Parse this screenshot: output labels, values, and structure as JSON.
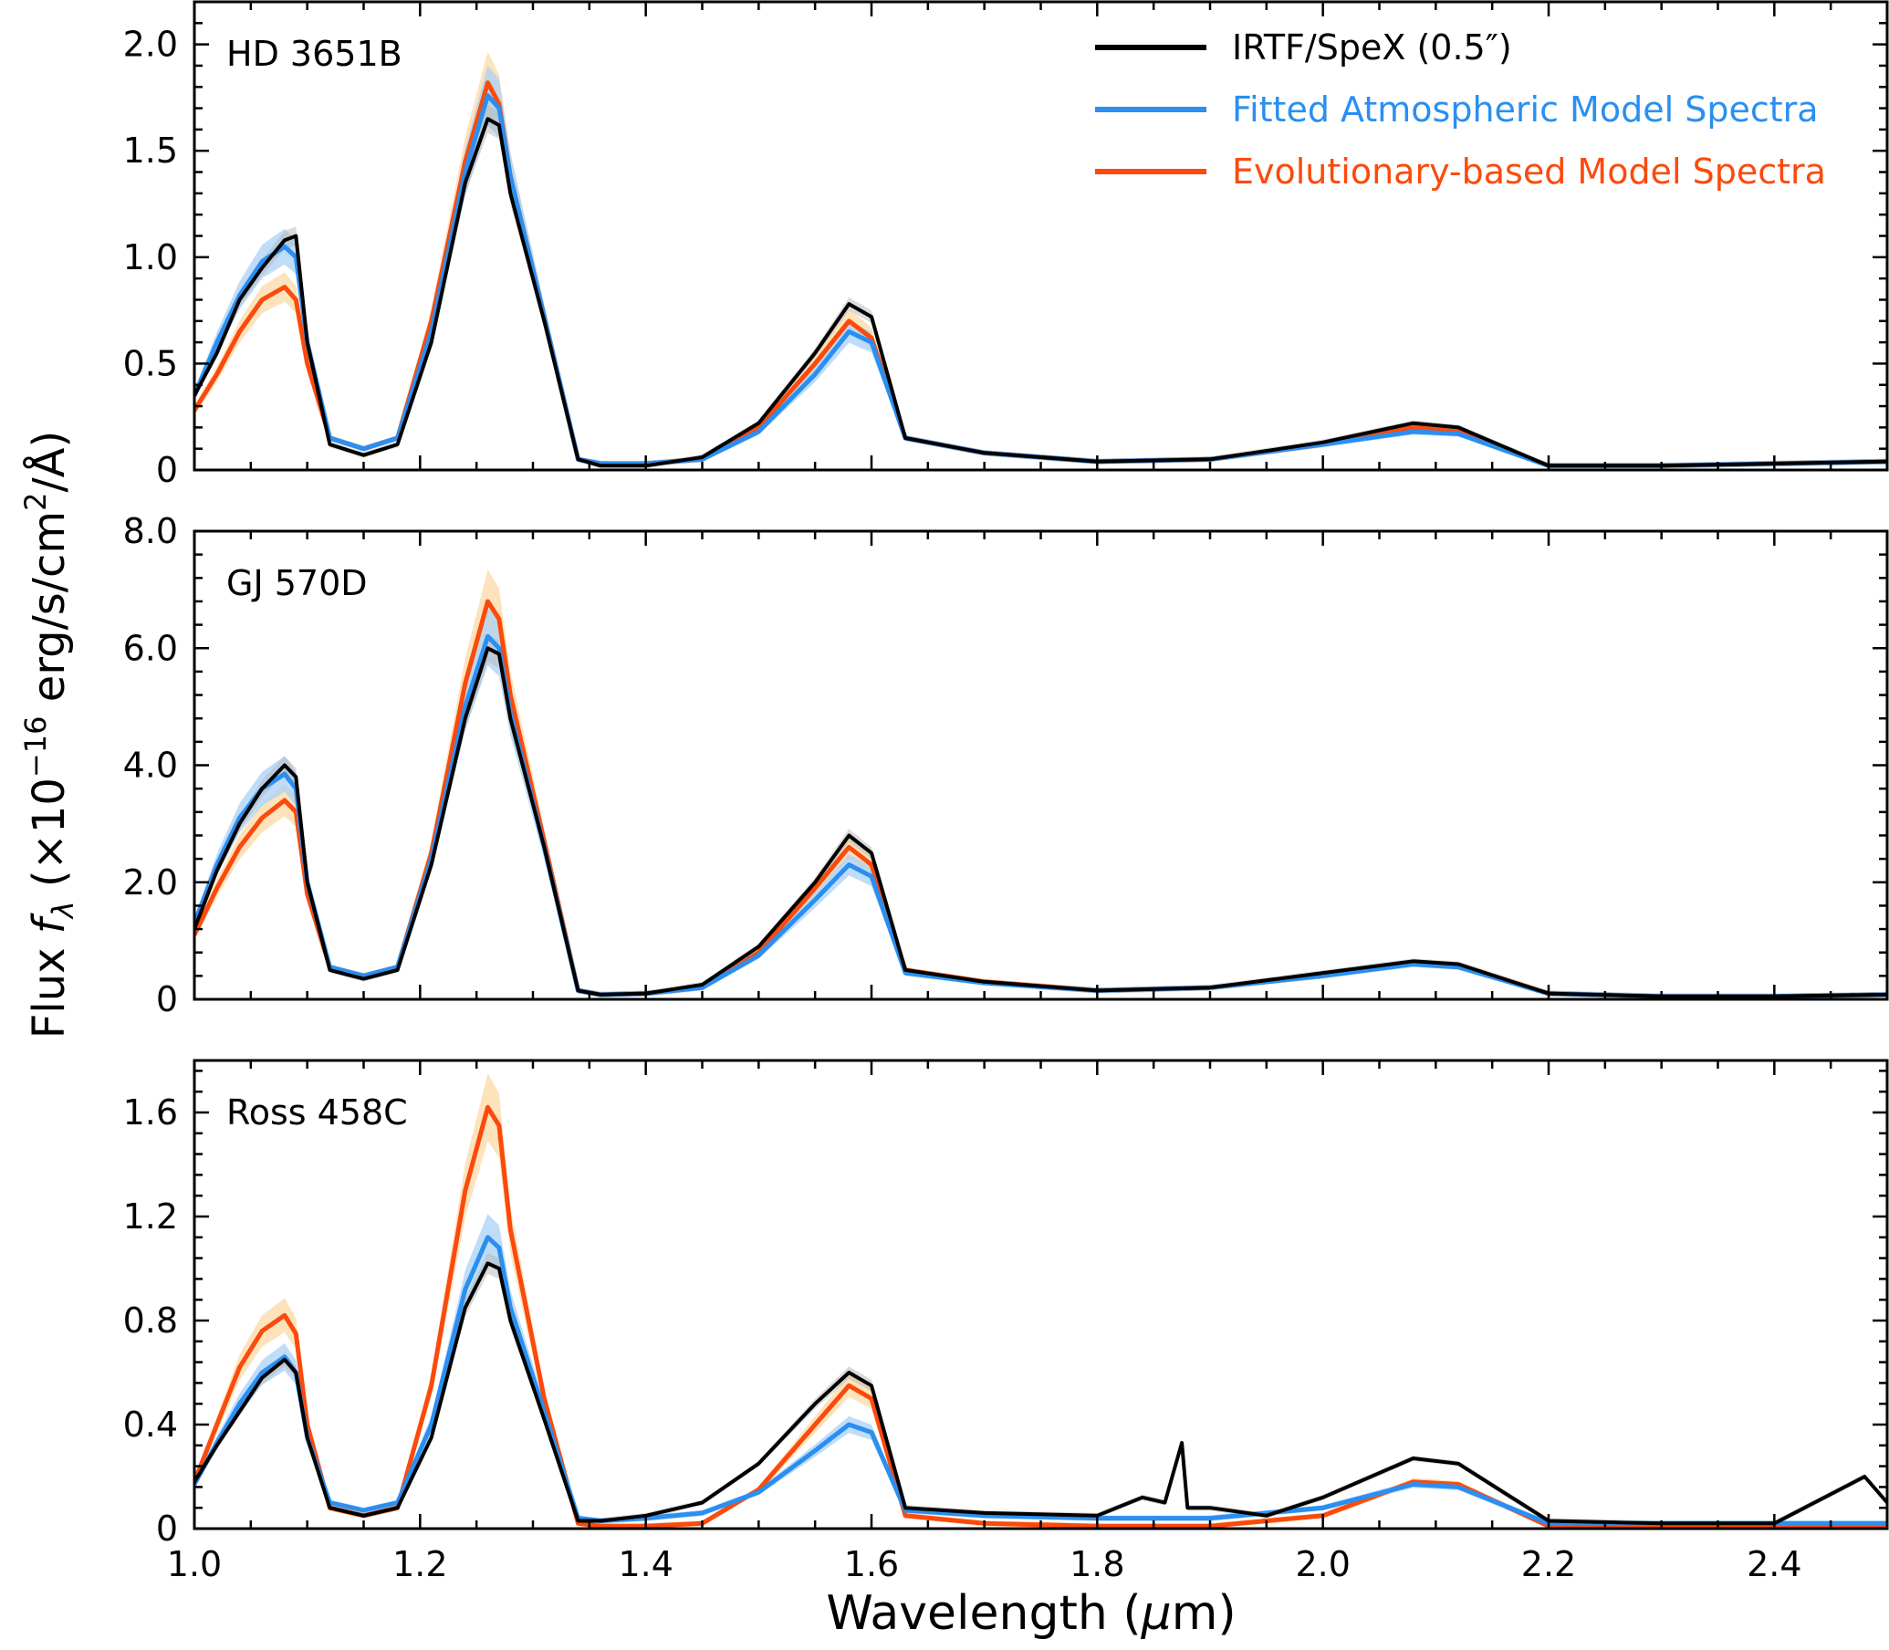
{
  "figure": {
    "ylabel_main": "Flux ",
    "ylabel_italic": "f",
    "ylabel_sub": "λ",
    "ylabel_rest": " (×10",
    "ylabel_sup": "−16",
    "ylabel_end": " erg/s/cm",
    "ylabel_sup2": "2",
    "ylabel_tail": "/Å)",
    "xlabel_pre": "Wavelength (",
    "xlabel_mu": "μ",
    "xlabel_post": "m)"
  },
  "legend": {
    "items": [
      {
        "label": "IRTF/SpeX (0.5″)",
        "color": "#000000"
      },
      {
        "label": "Fitted Atmospheric Model Spectra",
        "color": "#2a8ff0"
      },
      {
        "label": "Evolutionary-based Model Spectra",
        "color": "#fb4a0c"
      }
    ]
  },
  "colors": {
    "observed": "#000000",
    "observed_band": "#b8b8b8",
    "atmospheric": "#2a8ff0",
    "atmospheric_band": "#a9d2f6",
    "evolutionary": "#fb4a0c",
    "evolutionary_band": "#fcd9a6"
  },
  "chart_data": [
    {
      "type": "line",
      "title": "HD 3651B",
      "xlim": [
        1.0,
        2.5
      ],
      "ylim": [
        0,
        2.2
      ],
      "xticks": [
        "1.0",
        "1.2",
        "1.4",
        "1.6",
        "1.8",
        "2.0",
        "2.2",
        "2.4"
      ],
      "yticks": [
        {
          "v": 0,
          "label": "0"
        },
        {
          "v": 0.5,
          "label": "0.5"
        },
        {
          "v": 1.0,
          "label": "1.0"
        },
        {
          "v": 1.5,
          "label": "1.5"
        },
        {
          "v": 2.0,
          "label": "2.0"
        }
      ],
      "series": [
        {
          "name": "IRTF/SpeX (0.5″)",
          "key": "observed",
          "x": [
            1.0,
            1.02,
            1.04,
            1.06,
            1.08,
            1.09,
            1.1,
            1.12,
            1.15,
            1.18,
            1.21,
            1.24,
            1.26,
            1.27,
            1.28,
            1.31,
            1.34,
            1.36,
            1.4,
            1.45,
            1.5,
            1.55,
            1.58,
            1.6,
            1.63,
            1.7,
            1.8,
            1.9,
            2.0,
            2.08,
            2.12,
            2.2,
            2.3,
            2.4,
            2.5
          ],
          "y": [
            0.35,
            0.55,
            0.8,
            0.95,
            1.08,
            1.1,
            0.6,
            0.12,
            0.07,
            0.12,
            0.6,
            1.35,
            1.65,
            1.62,
            1.3,
            0.7,
            0.05,
            0.02,
            0.02,
            0.06,
            0.22,
            0.55,
            0.78,
            0.72,
            0.15,
            0.08,
            0.04,
            0.05,
            0.13,
            0.22,
            0.2,
            0.02,
            0.02,
            0.03,
            0.04
          ]
        },
        {
          "name": "Fitted Atmospheric Model Spectra",
          "key": "atmospheric",
          "x": [
            1.0,
            1.02,
            1.04,
            1.06,
            1.08,
            1.09,
            1.1,
            1.12,
            1.15,
            1.18,
            1.21,
            1.24,
            1.26,
            1.27,
            1.28,
            1.31,
            1.34,
            1.36,
            1.4,
            1.45,
            1.5,
            1.55,
            1.58,
            1.6,
            1.63,
            1.7,
            1.8,
            1.9,
            2.0,
            2.08,
            2.12,
            2.2,
            2.3,
            2.4,
            2.5
          ],
          "y": [
            0.35,
            0.6,
            0.82,
            0.98,
            1.05,
            1.0,
            0.6,
            0.15,
            0.1,
            0.15,
            0.65,
            1.4,
            1.76,
            1.7,
            1.38,
            0.72,
            0.05,
            0.03,
            0.03,
            0.05,
            0.18,
            0.45,
            0.65,
            0.6,
            0.15,
            0.08,
            0.04,
            0.05,
            0.12,
            0.18,
            0.17,
            0.02,
            0.02,
            0.03,
            0.04
          ]
        },
        {
          "name": "Evolutionary-based Model Spectra",
          "key": "evolutionary",
          "x": [
            1.0,
            1.02,
            1.04,
            1.06,
            1.08,
            1.09,
            1.1,
            1.12,
            1.15,
            1.18,
            1.21,
            1.24,
            1.26,
            1.27,
            1.28,
            1.31,
            1.34,
            1.36,
            1.4,
            1.45,
            1.5,
            1.55,
            1.58,
            1.6,
            1.63,
            1.7,
            1.8,
            1.9,
            2.0,
            2.08,
            2.12,
            2.2,
            2.3,
            2.4,
            2.5
          ],
          "y": [
            0.28,
            0.45,
            0.65,
            0.8,
            0.86,
            0.8,
            0.5,
            0.15,
            0.1,
            0.15,
            0.7,
            1.45,
            1.82,
            1.72,
            1.38,
            0.72,
            0.05,
            0.03,
            0.03,
            0.05,
            0.2,
            0.5,
            0.7,
            0.62,
            0.15,
            0.08,
            0.04,
            0.05,
            0.12,
            0.2,
            0.18,
            0.02,
            0.02,
            0.03,
            0.04
          ]
        }
      ]
    },
    {
      "type": "line",
      "title": "GJ 570D",
      "xlim": [
        1.0,
        2.5
      ],
      "ylim": [
        0,
        8.0
      ],
      "xticks": [
        "1.0",
        "1.2",
        "1.4",
        "1.6",
        "1.8",
        "2.0",
        "2.2",
        "2.4"
      ],
      "yticks": [
        {
          "v": 0,
          "label": "0"
        },
        {
          "v": 2,
          "label": "2.0"
        },
        {
          "v": 4,
          "label": "4.0"
        },
        {
          "v": 6,
          "label": "6.0"
        },
        {
          "v": 8,
          "label": "8.0"
        }
      ],
      "series": [
        {
          "name": "IRTF/SpeX (0.5″)",
          "key": "observed",
          "x": [
            1.0,
            1.02,
            1.04,
            1.06,
            1.08,
            1.09,
            1.1,
            1.12,
            1.15,
            1.18,
            1.21,
            1.24,
            1.26,
            1.27,
            1.28,
            1.31,
            1.34,
            1.36,
            1.4,
            1.45,
            1.5,
            1.55,
            1.58,
            1.6,
            1.63,
            1.7,
            1.8,
            1.9,
            2.0,
            2.08,
            2.12,
            2.2,
            2.3,
            2.4,
            2.5
          ],
          "y": [
            1.2,
            2.2,
            3.0,
            3.6,
            4.0,
            3.8,
            2.0,
            0.5,
            0.35,
            0.5,
            2.3,
            4.8,
            6.0,
            5.9,
            4.8,
            2.6,
            0.15,
            0.08,
            0.1,
            0.25,
            0.9,
            2.0,
            2.8,
            2.5,
            0.5,
            0.3,
            0.15,
            0.2,
            0.45,
            0.65,
            0.6,
            0.1,
            0.05,
            0.05,
            0.08
          ]
        },
        {
          "name": "Fitted Atmospheric Model Spectra",
          "key": "atmospheric",
          "x": [
            1.0,
            1.02,
            1.04,
            1.06,
            1.08,
            1.09,
            1.1,
            1.12,
            1.15,
            1.18,
            1.21,
            1.24,
            1.26,
            1.27,
            1.28,
            1.31,
            1.34,
            1.36,
            1.4,
            1.45,
            1.5,
            1.55,
            1.58,
            1.6,
            1.63,
            1.7,
            1.8,
            1.9,
            2.0,
            2.08,
            2.12,
            2.2,
            2.3,
            2.4,
            2.5
          ],
          "y": [
            1.3,
            2.3,
            3.1,
            3.6,
            3.85,
            3.6,
            2.0,
            0.55,
            0.4,
            0.55,
            2.4,
            5.0,
            6.2,
            6.0,
            4.9,
            2.6,
            0.15,
            0.08,
            0.1,
            0.2,
            0.75,
            1.7,
            2.3,
            2.1,
            0.45,
            0.28,
            0.15,
            0.2,
            0.4,
            0.6,
            0.55,
            0.1,
            0.05,
            0.05,
            0.08
          ]
        },
        {
          "name": "Evolutionary-based Model Spectra",
          "key": "evolutionary",
          "x": [
            1.0,
            1.02,
            1.04,
            1.06,
            1.08,
            1.09,
            1.1,
            1.12,
            1.15,
            1.18,
            1.21,
            1.24,
            1.26,
            1.27,
            1.28,
            1.31,
            1.34,
            1.36,
            1.4,
            1.45,
            1.5,
            1.55,
            1.58,
            1.6,
            1.63,
            1.7,
            1.8,
            1.9,
            2.0,
            2.08,
            2.12,
            2.2,
            2.3,
            2.4,
            2.5
          ],
          "y": [
            1.1,
            1.9,
            2.6,
            3.1,
            3.4,
            3.2,
            1.8,
            0.55,
            0.4,
            0.55,
            2.5,
            5.4,
            6.8,
            6.5,
            5.2,
            2.7,
            0.15,
            0.08,
            0.1,
            0.2,
            0.8,
            1.9,
            2.6,
            2.3,
            0.5,
            0.3,
            0.15,
            0.2,
            0.4,
            0.62,
            0.58,
            0.1,
            0.05,
            0.05,
            0.08
          ]
        }
      ]
    },
    {
      "type": "line",
      "title": "Ross 458C",
      "xlim": [
        1.0,
        2.5
      ],
      "ylim": [
        0,
        1.8
      ],
      "xticks": [
        "1.0",
        "1.2",
        "1.4",
        "1.6",
        "1.8",
        "2.0",
        "2.2",
        "2.4"
      ],
      "yticks": [
        {
          "v": 0,
          "label": "0"
        },
        {
          "v": 0.4,
          "label": "0.4"
        },
        {
          "v": 0.8,
          "label": "0.8"
        },
        {
          "v": 1.2,
          "label": "1.2"
        },
        {
          "v": 1.6,
          "label": "1.6"
        }
      ],
      "series": [
        {
          "name": "IRTF/SpeX (0.5″)",
          "key": "observed",
          "x": [
            1.0,
            1.02,
            1.04,
            1.06,
            1.08,
            1.09,
            1.1,
            1.12,
            1.15,
            1.18,
            1.21,
            1.24,
            1.26,
            1.27,
            1.28,
            1.31,
            1.34,
            1.36,
            1.4,
            1.45,
            1.5,
            1.55,
            1.58,
            1.6,
            1.63,
            1.7,
            1.8,
            1.84,
            1.86,
            1.875,
            1.88,
            1.9,
            1.95,
            2.0,
            2.08,
            2.12,
            2.2,
            2.3,
            2.4,
            2.48,
            2.5
          ],
          "y": [
            0.18,
            0.32,
            0.45,
            0.58,
            0.65,
            0.6,
            0.35,
            0.08,
            0.05,
            0.08,
            0.35,
            0.85,
            1.02,
            1.0,
            0.8,
            0.42,
            0.03,
            0.03,
            0.05,
            0.1,
            0.25,
            0.48,
            0.6,
            0.55,
            0.08,
            0.06,
            0.05,
            0.12,
            0.1,
            0.33,
            0.08,
            0.08,
            0.05,
            0.12,
            0.27,
            0.25,
            0.03,
            0.02,
            0.02,
            0.2,
            0.1
          ]
        },
        {
          "name": "Fitted Atmospheric Model Spectra",
          "key": "atmospheric",
          "x": [
            1.0,
            1.02,
            1.04,
            1.06,
            1.08,
            1.09,
            1.1,
            1.12,
            1.15,
            1.18,
            1.21,
            1.24,
            1.26,
            1.27,
            1.28,
            1.31,
            1.34,
            1.36,
            1.4,
            1.45,
            1.5,
            1.55,
            1.58,
            1.6,
            1.63,
            1.7,
            1.8,
            1.9,
            2.0,
            2.08,
            2.12,
            2.2,
            2.3,
            2.4,
            2.5
          ],
          "y": [
            0.17,
            0.33,
            0.48,
            0.6,
            0.66,
            0.6,
            0.35,
            0.1,
            0.07,
            0.1,
            0.4,
            0.92,
            1.12,
            1.08,
            0.85,
            0.45,
            0.04,
            0.03,
            0.04,
            0.06,
            0.14,
            0.3,
            0.4,
            0.37,
            0.07,
            0.05,
            0.04,
            0.04,
            0.08,
            0.17,
            0.16,
            0.02,
            0.02,
            0.02,
            0.02
          ]
        },
        {
          "name": "Evolutionary-based Model Spectra",
          "key": "evolutionary",
          "x": [
            1.0,
            1.02,
            1.04,
            1.06,
            1.08,
            1.09,
            1.1,
            1.12,
            1.15,
            1.18,
            1.21,
            1.24,
            1.26,
            1.27,
            1.28,
            1.31,
            1.34,
            1.36,
            1.4,
            1.45,
            1.5,
            1.55,
            1.58,
            1.6,
            1.63,
            1.7,
            1.8,
            1.9,
            2.0,
            2.08,
            2.12,
            2.2,
            2.3,
            2.4,
            2.5
          ],
          "y": [
            0.18,
            0.4,
            0.62,
            0.76,
            0.82,
            0.75,
            0.4,
            0.08,
            0.05,
            0.08,
            0.55,
            1.3,
            1.62,
            1.55,
            1.15,
            0.5,
            0.02,
            0.01,
            0.01,
            0.02,
            0.15,
            0.4,
            0.55,
            0.5,
            0.05,
            0.02,
            0.01,
            0.01,
            0.05,
            0.18,
            0.17,
            0.01,
            0.01,
            0.01,
            0.01
          ]
        }
      ]
    }
  ]
}
